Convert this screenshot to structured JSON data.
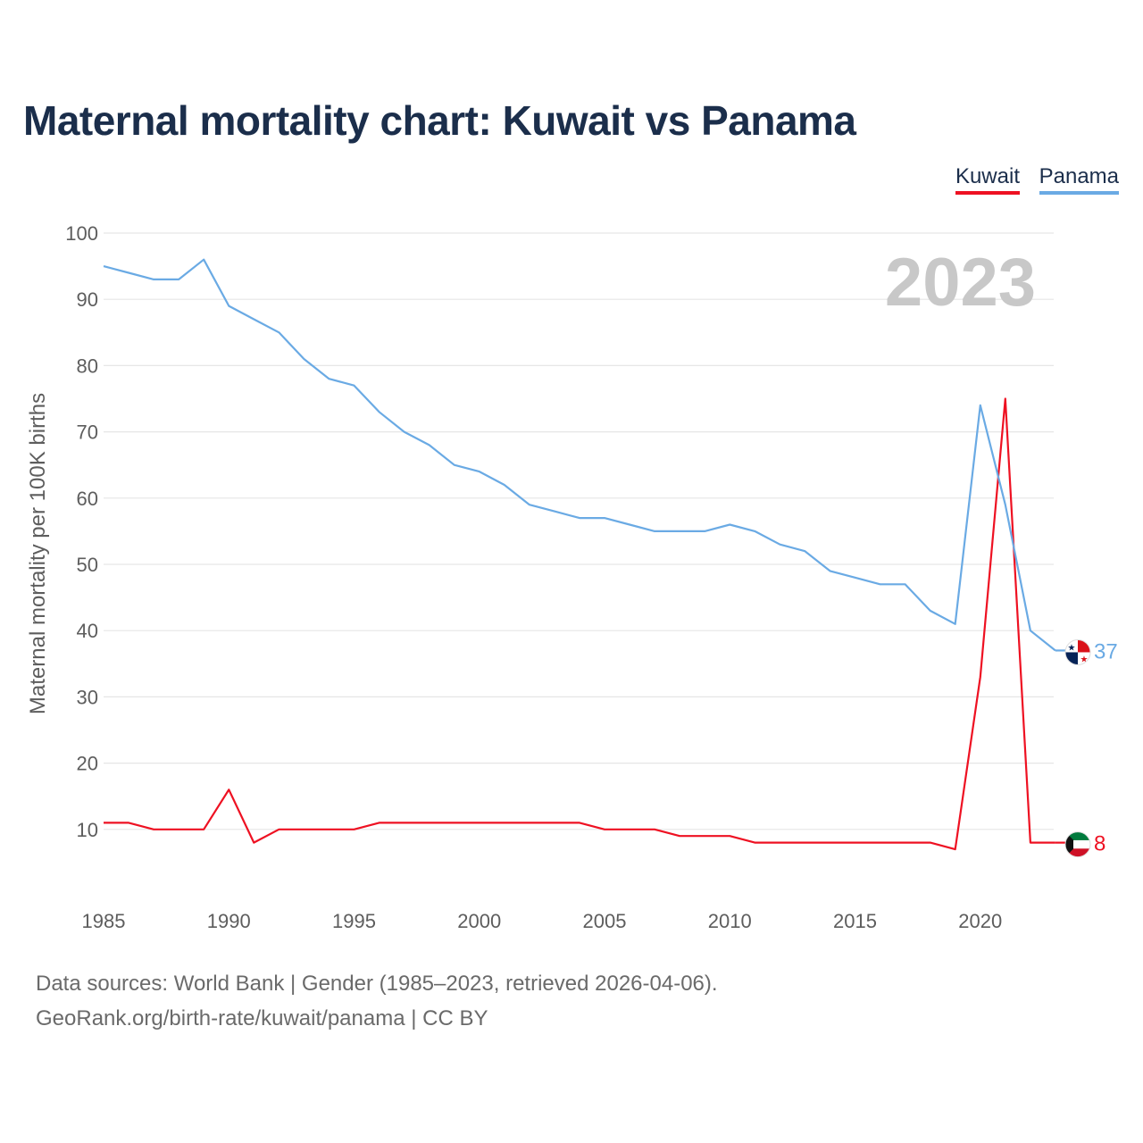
{
  "title": "Maternal mortality chart: Kuwait vs Panama",
  "legend": [
    {
      "label": "Kuwait",
      "color": "#ee1122"
    },
    {
      "label": "Panama",
      "color": "#6aaae4"
    }
  ],
  "year_watermark": "2023",
  "footer": {
    "sources": "Data sources: World Bank | Gender (1985–2023, retrieved 2026-04-06).",
    "credit": "GeoRank.org/birth-rate/kuwait/panama | CC BY"
  },
  "chart_data": {
    "type": "line",
    "title": "Maternal mortality chart: Kuwait vs Panama",
    "xlabel": "",
    "ylabel": "Maternal mortality per 100K births",
    "xlim": [
      1985,
      2023
    ],
    "ylim": [
      0,
      100
    ],
    "x_ticks": [
      1985,
      1990,
      1995,
      2000,
      2005,
      2010,
      2015,
      2020
    ],
    "y_ticks": [
      10,
      20,
      30,
      40,
      50,
      60,
      70,
      80,
      90,
      100
    ],
    "grid": true,
    "legend_position": "top-right",
    "x": [
      1985,
      1986,
      1987,
      1988,
      1989,
      1990,
      1991,
      1992,
      1993,
      1994,
      1995,
      1996,
      1997,
      1998,
      1999,
      2000,
      2001,
      2002,
      2003,
      2004,
      2005,
      2006,
      2007,
      2008,
      2009,
      2010,
      2011,
      2012,
      2013,
      2014,
      2015,
      2016,
      2017,
      2018,
      2019,
      2020,
      2021,
      2022,
      2023
    ],
    "series": [
      {
        "name": "Kuwait",
        "color": "#ee1122",
        "end_label": "8",
        "flag_icon": "kuwait-flag-icon",
        "values": [
          11,
          11,
          10,
          10,
          10,
          16,
          8,
          10,
          10,
          10,
          10,
          11,
          11,
          11,
          11,
          11,
          11,
          11,
          11,
          11,
          10,
          10,
          10,
          9,
          9,
          9,
          8,
          8,
          8,
          8,
          8,
          8,
          8,
          8,
          7,
          33,
          75,
          8,
          8
        ]
      },
      {
        "name": "Panama",
        "color": "#6aaae4",
        "end_label": "37",
        "flag_icon": "panama-flag-icon",
        "values": [
          95,
          94,
          93,
          93,
          96,
          89,
          87,
          85,
          81,
          78,
          77,
          73,
          70,
          68,
          65,
          64,
          62,
          59,
          58,
          57,
          57,
          56,
          55,
          55,
          55,
          56,
          55,
          53,
          52,
          49,
          48,
          47,
          47,
          43,
          41,
          74,
          59,
          40,
          37
        ]
      }
    ]
  }
}
